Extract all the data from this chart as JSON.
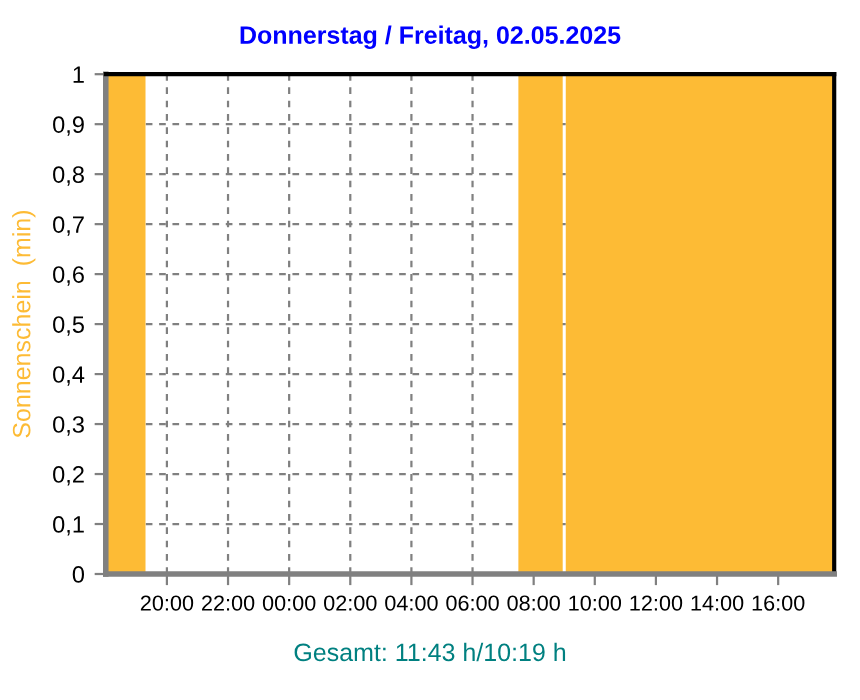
{
  "chart_data": {
    "type": "area",
    "title": "Donnerstag / Freitag, 02.05.2025",
    "ylabel": "Sonnenschein  (min)",
    "annotations": [
      "Gesamt: 11:43 h/10:19 h"
    ],
    "series": [
      {
        "color": "#fdbb35",
        "x": [
          "2025-05-01T18:00",
          "2025-05-01T19:18",
          "2025-05-01T19:18",
          "2025-05-02T07:30",
          "2025-05-02T07:30",
          "2025-05-02T08:57",
          "2025-05-02T08:57",
          "2025-05-02T09:03",
          "2025-05-02T09:03",
          "2025-05-02T17:50"
        ],
        "values": [
          1,
          1,
          0,
          0,
          1,
          1,
          0,
          0,
          1,
          1
        ]
      }
    ],
    "xlim": [
      "2025-05-01T18:00",
      "2025-05-02T17:50"
    ],
    "xticks": [
      {
        "value": "2025-05-01T20:00",
        "label": "20:00"
      },
      {
        "value": "2025-05-01T22:00",
        "label": "22:00"
      },
      {
        "value": "2025-05-02T00:00",
        "label": "00:00"
      },
      {
        "value": "2025-05-02T02:00",
        "label": "02:00"
      },
      {
        "value": "2025-05-02T04:00",
        "label": "04:00"
      },
      {
        "value": "2025-05-02T06:00",
        "label": "06:00"
      },
      {
        "value": "2025-05-02T08:00",
        "label": "08:00"
      },
      {
        "value": "2025-05-02T10:00",
        "label": "10:00"
      },
      {
        "value": "2025-05-02T12:00",
        "label": "12:00"
      },
      {
        "value": "2025-05-02T14:00",
        "label": "14:00"
      },
      {
        "value": "2025-05-02T16:00",
        "label": "16:00"
      }
    ],
    "ylim": [
      0,
      1
    ],
    "yticks": [
      0,
      {
        "value": 0.1,
        "label": "0,1"
      },
      {
        "value": 0.2,
        "label": "0,2"
      },
      {
        "value": 0.3,
        "label": "0,3"
      },
      {
        "value": 0.4,
        "label": "0,4"
      },
      {
        "value": 0.5,
        "label": "0,5"
      },
      {
        "value": 0.6,
        "label": "0,6"
      },
      {
        "value": 0.7,
        "label": "0,7"
      },
      {
        "value": 0.8,
        "label": "0,8"
      },
      {
        "value": 0.9,
        "label": "0,9"
      },
      1
    ],
    "grid": true
  }
}
